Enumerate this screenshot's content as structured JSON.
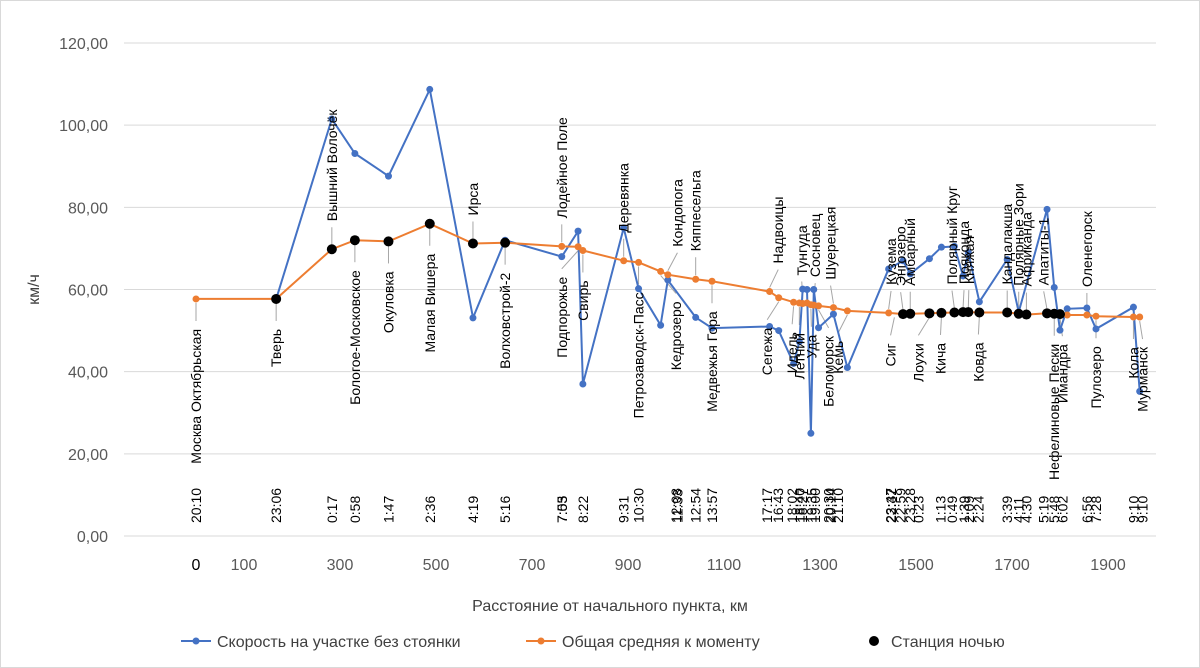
{
  "chart_data": {
    "type": "line",
    "title": "",
    "xlabel": "Расстояние от начального пункта, км",
    "ylabel": "км/ч",
    "xlim": [
      -150,
      2000
    ],
    "ylim": [
      0,
      120
    ],
    "x_ticks": [
      0,
      100,
      300,
      500,
      700,
      900,
      1100,
      1300,
      1500,
      1700,
      1900
    ],
    "x_tick_labels": [
      "0",
      "100",
      "300",
      "500",
      "700",
      "900",
      "1100",
      "1300",
      "1500",
      "1700",
      "1900"
    ],
    "y_ticks": [
      0,
      20,
      40,
      60,
      80,
      100,
      120
    ],
    "y_tick_labels": [
      "0,00",
      "20,00",
      "40,00",
      "60,00",
      "80,00",
      "100,00",
      "120,00"
    ],
    "grid": "horizontal",
    "legend_position": "bottom",
    "colors": {
      "segment": "#4472C4",
      "average": "#ED7D31",
      "night": "#000000",
      "grid": "#d9d9d9",
      "leader": "#a6a6a6"
    },
    "series": [
      {
        "name": "Скорость на участке без стоянки",
        "color": "#4472C4",
        "points": [
          [
            167,
            57.7
          ],
          [
            283,
            101.5
          ],
          [
            331,
            93.1
          ],
          [
            401,
            87.6
          ],
          [
            487,
            108.7
          ],
          [
            577,
            53.1
          ],
          [
            644,
            72.0
          ],
          [
            762,
            68.0
          ],
          [
            796,
            74.2
          ],
          [
            806,
            37.0
          ],
          [
            891,
            75.0
          ],
          [
            922,
            60.2
          ],
          [
            968,
            51.3
          ],
          [
            983,
            62.3
          ],
          [
            1041,
            53.2
          ],
          [
            1075,
            50.6
          ],
          [
            1195,
            51.0
          ],
          [
            1214,
            50.0
          ],
          [
            1245,
            42.0
          ],
          [
            1257,
            47.3
          ],
          [
            1264,
            60.1
          ],
          [
            1273,
            60.0
          ],
          [
            1281,
            25.0
          ],
          [
            1287,
            60.0
          ],
          [
            1297,
            50.7
          ],
          [
            1328,
            54.0
          ],
          [
            1357,
            41.0
          ],
          [
            1443,
            65.0
          ],
          [
            1473,
            67.0
          ],
          [
            1488,
            63.8
          ],
          [
            1528,
            67.5
          ],
          [
            1553,
            70.3
          ],
          [
            1580,
            70.5
          ],
          [
            1598,
            63.3
          ],
          [
            1609,
            69.0
          ],
          [
            1632,
            57.0
          ],
          [
            1690,
            67.3
          ],
          [
            1714,
            54.5
          ],
          [
            1773,
            79.5
          ],
          [
            1788,
            60.5
          ],
          [
            1800,
            50.1
          ],
          [
            1815,
            55.3
          ],
          [
            1856,
            55.5
          ],
          [
            1875,
            50.4
          ],
          [
            1953,
            55.7
          ],
          [
            1966,
            35.2
          ]
        ]
      },
      {
        "name": "Общая средняя к моменту",
        "color": "#ED7D31",
        "points": [
          [
            0,
            57.7
          ],
          [
            167,
            57.7
          ],
          [
            283,
            69.8
          ],
          [
            331,
            72.0
          ],
          [
            401,
            71.7
          ],
          [
            487,
            76.0
          ],
          [
            577,
            71.2
          ],
          [
            644,
            71.4
          ],
          [
            762,
            70.5
          ],
          [
            796,
            70.4
          ],
          [
            806,
            69.5
          ],
          [
            891,
            67.0
          ],
          [
            922,
            66.6
          ],
          [
            968,
            64.4
          ],
          [
            983,
            63.6
          ],
          [
            1041,
            62.5
          ],
          [
            1075,
            62.0
          ],
          [
            1195,
            59.5
          ],
          [
            1214,
            58.0
          ],
          [
            1245,
            56.9
          ],
          [
            1257,
            56.7
          ],
          [
            1264,
            56.6
          ],
          [
            1273,
            56.7
          ],
          [
            1281,
            56.3
          ],
          [
            1287,
            56.2
          ],
          [
            1297,
            56.0
          ],
          [
            1328,
            55.6
          ],
          [
            1357,
            54.8
          ],
          [
            1443,
            54.3
          ],
          [
            1473,
            54.0
          ],
          [
            1488,
            54.1
          ],
          [
            1528,
            54.2
          ],
          [
            1553,
            54.3
          ],
          [
            1580,
            54.4
          ],
          [
            1598,
            54.5
          ],
          [
            1609,
            54.5
          ],
          [
            1632,
            54.4
          ],
          [
            1690,
            54.4
          ],
          [
            1714,
            54.1
          ],
          [
            1730,
            53.9
          ],
          [
            1773,
            54.2
          ],
          [
            1788,
            54.1
          ],
          [
            1800,
            54.0
          ],
          [
            1815,
            53.8
          ],
          [
            1856,
            53.8
          ],
          [
            1875,
            53.5
          ],
          [
            1953,
            53.3
          ],
          [
            1966,
            53.3
          ]
        ]
      },
      {
        "name": "Станция ночью",
        "color": "#000000",
        "points": [
          [
            167,
            57.7
          ],
          [
            283,
            69.8
          ],
          [
            331,
            72.0
          ],
          [
            401,
            71.7
          ],
          [
            487,
            76.0
          ],
          [
            577,
            71.2
          ],
          [
            644,
            71.4
          ],
          [
            1473,
            54.0
          ],
          [
            1488,
            54.1
          ],
          [
            1528,
            54.2
          ],
          [
            1553,
            54.3
          ],
          [
            1580,
            54.4
          ],
          [
            1598,
            54.5
          ],
          [
            1609,
            54.5
          ],
          [
            1632,
            54.4
          ],
          [
            1690,
            54.4
          ],
          [
            1714,
            54.1
          ],
          [
            1730,
            53.9
          ],
          [
            1773,
            54.2
          ],
          [
            1788,
            54.1
          ],
          [
            1800,
            54.0
          ]
        ]
      }
    ],
    "stations": [
      {
        "name": "Москва Октябрьская",
        "x": 0,
        "time": "20:10",
        "side": "below",
        "label_x": 0
      },
      {
        "name": "Тверь",
        "x": 167,
        "time": "23:06",
        "side": "below",
        "label_x": 167
      },
      {
        "name": "Вышний Волочёк",
        "x": 283,
        "time": "0:17",
        "side": "above",
        "label_x": 283
      },
      {
        "name": "Бологое-Московское",
        "x": 331,
        "time": "0:58",
        "side": "below",
        "label_x": 331
      },
      {
        "name": "Окуловка",
        "x": 401,
        "time": "1:47",
        "side": "below",
        "label_x": 401
      },
      {
        "name": "Малая Вишера",
        "x": 487,
        "time": "2:36",
        "side": "below",
        "label_x": 487
      },
      {
        "name": "Ирса",
        "x": 577,
        "time": "4:19",
        "side": "above",
        "label_x": 577
      },
      {
        "name": "Волховстрой-2",
        "x": 644,
        "time": "5:16",
        "side": "below",
        "label_x": 644
      },
      {
        "name": "Лодейное Поле",
        "x": 762,
        "time": "7:03",
        "side": "above",
        "label_x": 762
      },
      {
        "name": "Подпорожье",
        "x": 796,
        "time": "7:55",
        "side": "below",
        "label_x": 762
      },
      {
        "name": "Свирь",
        "x": 806,
        "time": "8:22",
        "side": "below",
        "label_x": 806
      },
      {
        "name": "Деревянка",
        "x": 891,
        "time": "9:31",
        "side": "above",
        "label_x": 891
      },
      {
        "name": "Петрозаводск-Пасс",
        "x": 922,
        "time": "10:30",
        "side": "below",
        "label_x": 922
      },
      {
        "name": "Кондопога",
        "x": 983,
        "time": "11:33",
        "side": "above",
        "label_x": 1003
      },
      {
        "name": "Кедрозеро",
        "x": 968,
        "time": "12:08",
        "side": "below",
        "label_x": 1000
      },
      {
        "name": "Кяппесельга",
        "x": 1041,
        "time": "12:54",
        "side": "above",
        "label_x": 1041
      },
      {
        "name": "Медвежья Гора",
        "x": 1075,
        "time": "13:57",
        "side": "below",
        "label_x": 1075
      },
      {
        "name": "Надвоицы",
        "x": 1195,
        "time": "16:43",
        "side": "above",
        "label_x": 1213
      },
      {
        "name": "Сегежа",
        "x": 1214,
        "time": "17:17",
        "side": "below",
        "label_x": 1190
      },
      {
        "name": "Идель",
        "x": 1245,
        "time": "18:02",
        "side": "below",
        "label_x": 1242
      },
      {
        "name": "Тунгуда",
        "x": 1264,
        "time": "18:27",
        "side": "above",
        "label_x": 1262
      },
      {
        "name": "Летний",
        "x": 1257,
        "time": "18:40",
        "side": "below",
        "label_x": 1257
      },
      {
        "name": "Сосновец",
        "x": 1287,
        "time": "19:00",
        "side": "above",
        "label_x": 1290
      },
      {
        "name": "Уда",
        "x": 1281,
        "time": "19:35",
        "side": "below",
        "label_x": 1282
      },
      {
        "name": "Шуерецкая",
        "x": 1328,
        "time": "20:14",
        "side": "above",
        "label_x": 1322
      },
      {
        "name": "Беломорск",
        "x": 1297,
        "time": "20:30",
        "side": "below",
        "label_x": 1318
      },
      {
        "name": "Кемь",
        "x": 1357,
        "time": "21:10",
        "side": "below",
        "label_x": 1338
      },
      {
        "name": "Кузема",
        "x": 1443,
        "time": "22:32",
        "side": "above",
        "label_x": 1448
      },
      {
        "name": "Энгозеро",
        "x": 1473,
        "time": "22:59",
        "side": "above",
        "label_x": 1468
      },
      {
        "name": "Амбарный",
        "x": 1488,
        "time": "23:28",
        "side": "above",
        "label_x": 1488
      },
      {
        "name": "Сиг",
        "x": 1455,
        "time": "23:47",
        "side": "below",
        "label_x": 1447
      },
      {
        "name": "Лоухи",
        "x": 1528,
        "time": "0:23",
        "side": "below",
        "label_x": 1505
      },
      {
        "name": "Полярный Круг",
        "x": 1580,
        "time": "0:49",
        "side": "above",
        "label_x": 1575
      },
      {
        "name": "Кича",
        "x": 1553,
        "time": "1:13",
        "side": "below",
        "label_x": 1551
      },
      {
        "name": "Пояконда",
        "x": 1598,
        "time": "1:39",
        "side": "above",
        "label_x": 1600
      },
      {
        "name": "Княжая",
        "x": 1609,
        "time": "2:09",
        "side": "above",
        "label_x": 1610
      },
      {
        "name": "Ковда",
        "x": 1632,
        "time": "2:24",
        "side": "below",
        "label_x": 1630
      },
      {
        "name": "Кандалакша",
        "x": 1690,
        "time": "3:39",
        "side": "above",
        "label_x": 1690
      },
      {
        "name": "Полярные Зори",
        "x": 1714,
        "time": "4:11",
        "side": "above",
        "label_x": 1714
      },
      {
        "name": "Африканда",
        "x": 1730,
        "time": "4:30",
        "side": "above",
        "label_x": 1730
      },
      {
        "name": "Апатиты-1",
        "x": 1773,
        "time": "5:19",
        "side": "above",
        "label_x": 1766
      },
      {
        "name": "Нефелиновые Пески",
        "x": 1788,
        "time": "5:48",
        "side": "below",
        "label_x": 1788
      },
      {
        "name": "Имандра",
        "x": 1800,
        "time": "6:02",
        "side": "below",
        "label_x": 1805
      },
      {
        "name": "Оленегорск",
        "x": 1856,
        "time": "6:56",
        "side": "above",
        "label_x": 1856
      },
      {
        "name": "Пулозеро",
        "x": 1875,
        "time": "7:28",
        "side": "below",
        "label_x": 1875
      },
      {
        "name": "Кола",
        "x": 1953,
        "time": "9:10",
        "side": "below",
        "label_x": 1953
      },
      {
        "name": "Мурманск",
        "x": 1966,
        "time": "9:10",
        "side": "below",
        "label_x": 1972
      }
    ]
  }
}
